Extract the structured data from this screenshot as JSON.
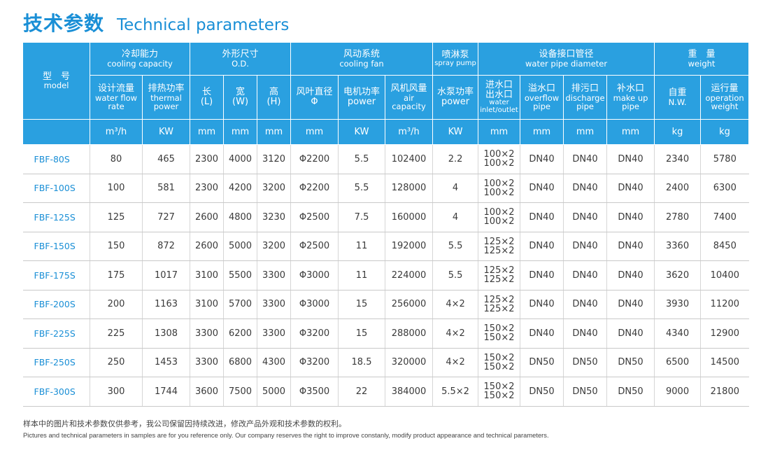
{
  "title": {
    "cn": "技术参数",
    "en": "Technical parameters"
  },
  "header": {
    "model": {
      "cn": "型　号",
      "en": "model"
    },
    "groups": {
      "cooling": {
        "cn": "冷却能力",
        "en": "cooling capacity"
      },
      "od": {
        "cn": "外形尺寸",
        "en": "O.D."
      },
      "fan": {
        "cn": "风动系统",
        "en": "cooling fan"
      },
      "spray": {
        "cn": "喷淋泵",
        "en": "spray pump"
      },
      "pipe": {
        "cn": "设备接口管径",
        "en": "water pipe diameter"
      },
      "weight": {
        "cn": "重　量",
        "en": "weight"
      }
    },
    "cols": {
      "flow": {
        "cn": "设计流量",
        "en1": "water flow",
        "en2": "rate"
      },
      "heat": {
        "cn": "排热功率",
        "en1": "thermal",
        "en2": "power"
      },
      "len": {
        "cn": "长",
        "en": "(L)"
      },
      "wid": {
        "cn": "宽",
        "en": "(W)"
      },
      "hgt": {
        "cn": "高",
        "en": "(H)"
      },
      "blade": {
        "cn": "风叶直径",
        "en": "Φ"
      },
      "motor": {
        "cn": "电机功率",
        "en": "power"
      },
      "air": {
        "cn": "风机风量",
        "en1": "air",
        "en2": "capacity"
      },
      "pump": {
        "cn": "水泵功率",
        "en": "power"
      },
      "inout": {
        "cn1": "进水口",
        "cn2": "出水口",
        "en1": "water",
        "en2": "inlet/outlet"
      },
      "overflow": {
        "cn": "溢水口",
        "en1": "overflow",
        "en2": "pipe"
      },
      "discharge": {
        "cn": "排污口",
        "en1": "discharge",
        "en2": "pipe"
      },
      "makeup": {
        "cn": "补水口",
        "en1": "make up",
        "en2": "pipe"
      },
      "nw": {
        "cn": "自重",
        "en": "N.W."
      },
      "op": {
        "cn": "运行量",
        "en1": "operation",
        "en2": "weight"
      }
    },
    "units": [
      "m³/h",
      "KW",
      "mm",
      "mm",
      "mm",
      "mm",
      "KW",
      "m³/h",
      "KW",
      "mm",
      "mm",
      "mm",
      "mm",
      "kg",
      "kg"
    ]
  },
  "rows": [
    {
      "model": "FBF-80S",
      "flow": "80",
      "heat": "465",
      "l": "2300",
      "w": "4000",
      "h": "3120",
      "blade": "Φ2200",
      "motor": "5.5",
      "air": "102400",
      "pump": "2.2",
      "in": "100×2",
      "out": "100×2",
      "overflow": "DN40",
      "discharge": "DN40",
      "makeup": "DN40",
      "nw": "2340",
      "op": "5780"
    },
    {
      "model": "FBF-100S",
      "flow": "100",
      "heat": "581",
      "l": "2300",
      "w": "4200",
      "h": "3200",
      "blade": "Φ2200",
      "motor": "5.5",
      "air": "128000",
      "pump": "4",
      "in": "100×2",
      "out": "100×2",
      "overflow": "DN40",
      "discharge": "DN40",
      "makeup": "DN40",
      "nw": "2400",
      "op": "6300"
    },
    {
      "model": "FBF-125S",
      "flow": "125",
      "heat": "727",
      "l": "2600",
      "w": "4800",
      "h": "3230",
      "blade": "Φ2500",
      "motor": "7.5",
      "air": "160000",
      "pump": "4",
      "in": "100×2",
      "out": "100×2",
      "overflow": "DN40",
      "discharge": "DN40",
      "makeup": "DN40",
      "nw": "2780",
      "op": "7400"
    },
    {
      "model": "FBF-150S",
      "flow": "150",
      "heat": "872",
      "l": "2600",
      "w": "5000",
      "h": "3200",
      "blade": "Φ2500",
      "motor": "11",
      "air": "192000",
      "pump": "5.5",
      "in": "125×2",
      "out": "125×2",
      "overflow": "DN40",
      "discharge": "DN40",
      "makeup": "DN40",
      "nw": "3360",
      "op": "8450"
    },
    {
      "model": "FBF-175S",
      "flow": "175",
      "heat": "1017",
      "l": "3100",
      "w": "5500",
      "h": "3300",
      "blade": "Φ3000",
      "motor": "11",
      "air": "224000",
      "pump": "5.5",
      "in": "125×2",
      "out": "125×2",
      "overflow": "DN40",
      "discharge": "DN40",
      "makeup": "DN40",
      "nw": "3620",
      "op": "10400"
    },
    {
      "model": "FBF-200S",
      "flow": "200",
      "heat": "1163",
      "l": "3100",
      "w": "5700",
      "h": "3300",
      "blade": "Φ3000",
      "motor": "15",
      "air": "256000",
      "pump": "4×2",
      "in": "125×2",
      "out": "125×2",
      "overflow": "DN40",
      "discharge": "DN40",
      "makeup": "DN40",
      "nw": "3930",
      "op": "11200"
    },
    {
      "model": "FBF-225S",
      "flow": "225",
      "heat": "1308",
      "l": "3300",
      "w": "6200",
      "h": "3300",
      "blade": "Φ3200",
      "motor": "15",
      "air": "288000",
      "pump": "4×2",
      "in": "150×2",
      "out": "150×2",
      "overflow": "DN40",
      "discharge": "DN40",
      "makeup": "DN40",
      "nw": "4340",
      "op": "12900"
    },
    {
      "model": "FBF-250S",
      "flow": "250",
      "heat": "1453",
      "l": "3300",
      "w": "6800",
      "h": "4300",
      "blade": "Φ3200",
      "motor": "18.5",
      "air": "320000",
      "pump": "4×2",
      "in": "150×2",
      "out": "150×2",
      "overflow": "DN50",
      "discharge": "DN50",
      "makeup": "DN50",
      "nw": "6500",
      "op": "14500"
    },
    {
      "model": "FBF-300S",
      "flow": "300",
      "heat": "1744",
      "l": "3600",
      "w": "7500",
      "h": "5000",
      "blade": "Φ3500",
      "motor": "22",
      "air": "384000",
      "pump": "5.5×2",
      "in": "150×2",
      "out": "150×2",
      "overflow": "DN50",
      "discharge": "DN50",
      "makeup": "DN50",
      "nw": "9000",
      "op": "21800"
    }
  ],
  "notes": {
    "cn": "样本中的图片和技术参数仅供参考，我公司保留因持续改进，修改产品外观和技术参数的权利。",
    "en": "Pictures and technical parameters in samples are for you reference only. Our company reserves the right to improve constanly, modify product appearance and technical parameters."
  }
}
